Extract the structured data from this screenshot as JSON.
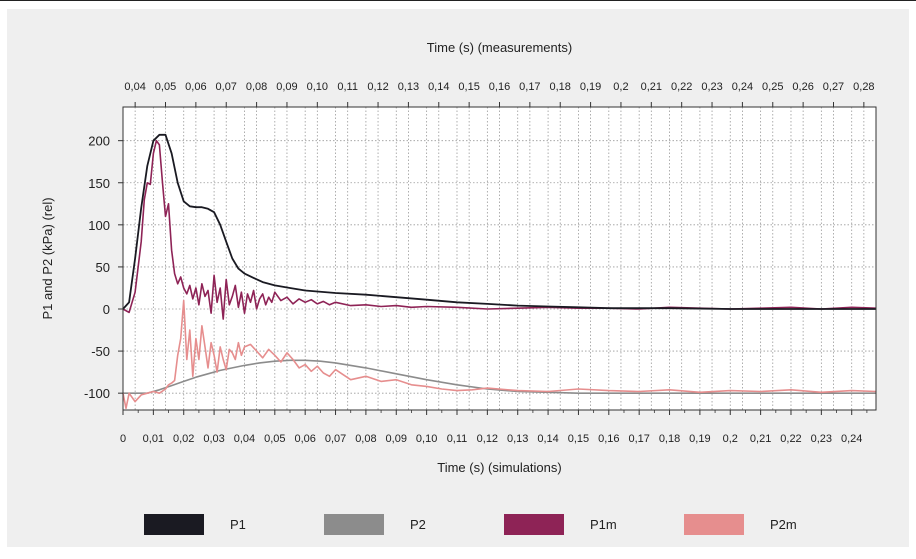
{
  "chart_data": {
    "type": "line",
    "top_axis_label": "Time (s) (measurements)",
    "bottom_axis_label": "Time (s) (simulations)",
    "ylabel": "P1 and P2 (kPa) (rel)",
    "ylim": [
      -120,
      240
    ],
    "y_ticks": [
      "200",
      "150",
      "100",
      "50",
      "0",
      "-50",
      "-100"
    ],
    "y_tick_values": [
      200,
      150,
      100,
      50,
      0,
      -50,
      -100
    ],
    "xlim_bottom": [
      0,
      0.248
    ],
    "bottom_ticks": [
      "0",
      "0,01",
      "0,02",
      "0,03",
      "0,04",
      "0,05",
      "0,06",
      "0,07",
      "0,08",
      "0,09",
      "0,10",
      "0,11",
      "0,12",
      "0,13",
      "0,14",
      "0,15",
      "0,16",
      "0,17",
      "0,18",
      "0,19",
      "0,2",
      "0,21",
      "0,22",
      "0,23",
      "0,24"
    ],
    "top_ticks": [
      "0,04",
      "0,05",
      "0,06",
      "0,07",
      "0,08",
      "0,09",
      "0,10",
      "0,11",
      "0,12",
      "0,13",
      "0,14",
      "0,15",
      "0,16",
      "0,17",
      "0,18",
      "0,19",
      "0,2",
      "0,21",
      "0,22",
      "0,23",
      "0,24",
      "0,25",
      "0,26",
      "0,27",
      "0,28"
    ],
    "top_tick_values": [
      0.04,
      0.05,
      0.06,
      0.07,
      0.08,
      0.09,
      0.1,
      0.11,
      0.12,
      0.13,
      0.14,
      0.15,
      0.16,
      0.17,
      0.18,
      0.19,
      0.2,
      0.21,
      0.22,
      0.23,
      0.24,
      0.25,
      0.26,
      0.27,
      0.28
    ],
    "top_axis_offset": 0.036,
    "grid": true,
    "legend_position": "bottom",
    "series": [
      {
        "name": "P1",
        "color": "#1a1a22",
        "x": [
          0,
          0.002,
          0.004,
          0.006,
          0.008,
          0.01,
          0.012,
          0.014,
          0.016,
          0.018,
          0.02,
          0.022,
          0.024,
          0.026,
          0.028,
          0.03,
          0.032,
          0.034,
          0.036,
          0.038,
          0.04,
          0.043,
          0.046,
          0.05,
          0.055,
          0.06,
          0.07,
          0.08,
          0.09,
          0.1,
          0.11,
          0.12,
          0.13,
          0.14,
          0.15,
          0.16,
          0.18,
          0.2,
          0.22,
          0.248
        ],
        "y": [
          0,
          8,
          60,
          120,
          170,
          200,
          207,
          207,
          185,
          150,
          128,
          122,
          121,
          121,
          119,
          115,
          100,
          80,
          60,
          48,
          42,
          37,
          32,
          28,
          25,
          22,
          19,
          17,
          14,
          11,
          8,
          6,
          4,
          3,
          2,
          1,
          1,
          0,
          0,
          0
        ]
      },
      {
        "name": "P2",
        "color": "#8c8c8c",
        "x": [
          0,
          0.004,
          0.008,
          0.012,
          0.016,
          0.02,
          0.024,
          0.028,
          0.032,
          0.036,
          0.04,
          0.045,
          0.05,
          0.055,
          0.06,
          0.065,
          0.07,
          0.08,
          0.09,
          0.1,
          0.11,
          0.12,
          0.13,
          0.14,
          0.15,
          0.16,
          0.18,
          0.2,
          0.22,
          0.248
        ],
        "y": [
          -100,
          -100,
          -100,
          -96,
          -91,
          -86,
          -81,
          -77,
          -73,
          -70,
          -67,
          -64,
          -62,
          -61,
          -61,
          -62,
          -64,
          -70,
          -77,
          -84,
          -90,
          -95,
          -98,
          -99,
          -100,
          -100,
          -100,
          -100,
          -100,
          -100
        ]
      },
      {
        "name": "P1m",
        "color": "#8e2356",
        "x": [
          0,
          0.002,
          0.004,
          0.006,
          0.007,
          0.008,
          0.009,
          0.01,
          0.011,
          0.012,
          0.013,
          0.014,
          0.015,
          0.016,
          0.017,
          0.018,
          0.019,
          0.02,
          0.021,
          0.022,
          0.023,
          0.024,
          0.025,
          0.026,
          0.027,
          0.028,
          0.029,
          0.03,
          0.031,
          0.032,
          0.033,
          0.034,
          0.035,
          0.036,
          0.037,
          0.038,
          0.039,
          0.04,
          0.041,
          0.042,
          0.043,
          0.044,
          0.045,
          0.046,
          0.047,
          0.048,
          0.049,
          0.05,
          0.052,
          0.054,
          0.056,
          0.058,
          0.06,
          0.062,
          0.064,
          0.066,
          0.068,
          0.07,
          0.075,
          0.08,
          0.085,
          0.09,
          0.095,
          0.1,
          0.11,
          0.12,
          0.13,
          0.14,
          0.15,
          0.16,
          0.17,
          0.18,
          0.19,
          0.2,
          0.21,
          0.22,
          0.23,
          0.24,
          0.248
        ],
        "y": [
          0,
          -4,
          20,
          80,
          130,
          150,
          148,
          185,
          200,
          195,
          150,
          110,
          125,
          70,
          42,
          30,
          38,
          25,
          18,
          28,
          12,
          25,
          5,
          30,
          15,
          22,
          -5,
          40,
          8,
          25,
          -12,
          35,
          5,
          15,
          28,
          2,
          20,
          -5,
          18,
          8,
          22,
          0,
          12,
          18,
          5,
          14,
          8,
          20,
          10,
          14,
          6,
          12,
          8,
          11,
          6,
          9,
          5,
          8,
          4,
          5,
          3,
          4,
          2,
          3,
          2,
          0,
          1,
          2,
          1,
          1,
          0,
          2,
          1,
          0,
          1,
          2,
          0,
          2,
          1
        ]
      },
      {
        "name": "P2m",
        "color": "#e68e8e",
        "x": [
          0,
          0.001,
          0.002,
          0.004,
          0.006,
          0.008,
          0.01,
          0.012,
          0.014,
          0.015,
          0.016,
          0.017,
          0.018,
          0.019,
          0.02,
          0.021,
          0.022,
          0.023,
          0.024,
          0.025,
          0.026,
          0.027,
          0.028,
          0.029,
          0.03,
          0.031,
          0.032,
          0.033,
          0.034,
          0.035,
          0.036,
          0.037,
          0.038,
          0.039,
          0.04,
          0.042,
          0.044,
          0.046,
          0.048,
          0.05,
          0.052,
          0.054,
          0.056,
          0.058,
          0.06,
          0.062,
          0.064,
          0.066,
          0.068,
          0.07,
          0.075,
          0.08,
          0.085,
          0.09,
          0.095,
          0.1,
          0.105,
          0.11,
          0.115,
          0.12,
          0.13,
          0.14,
          0.15,
          0.16,
          0.17,
          0.18,
          0.19,
          0.2,
          0.21,
          0.22,
          0.23,
          0.24,
          0.248
        ],
        "y": [
          -100,
          -118,
          -100,
          -110,
          -102,
          -100,
          -98,
          -100,
          -95,
          -90,
          -88,
          -85,
          -55,
          -35,
          10,
          -60,
          -25,
          -80,
          -35,
          -60,
          -20,
          -45,
          -70,
          -40,
          -55,
          -75,
          -45,
          -60,
          -72,
          -48,
          -52,
          -60,
          -40,
          -55,
          -45,
          -42,
          -50,
          -58,
          -48,
          -55,
          -63,
          -52,
          -60,
          -70,
          -66,
          -74,
          -68,
          -76,
          -80,
          -72,
          -84,
          -80,
          -86,
          -84,
          -90,
          -92,
          -95,
          -97,
          -96,
          -94,
          -97,
          -98,
          -95,
          -97,
          -98,
          -96,
          -99,
          -97,
          -98,
          -96,
          -99,
          -97,
          -98
        ]
      }
    ]
  }
}
